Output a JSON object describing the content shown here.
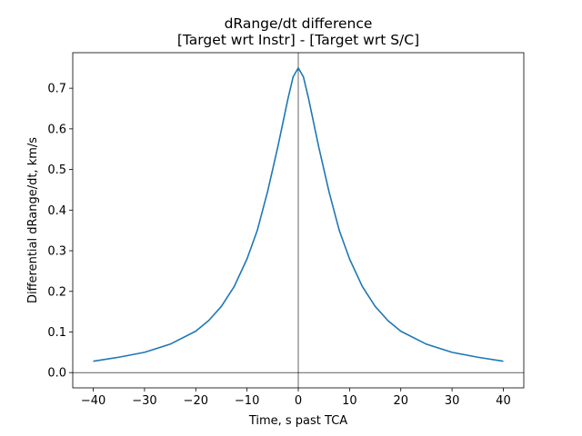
{
  "chart_data": {
    "type": "line",
    "title": "dRange/dt difference",
    "subtitle": "[Target wrt Instr] - [Target wrt S/C]",
    "xlabel": "Time, s past TCA",
    "ylabel": "Differential dRange/dt, km/s",
    "xlim": [
      -44,
      44
    ],
    "ylim": [
      -0.0375,
      0.7875
    ],
    "xticks": [
      -40,
      -30,
      -20,
      -10,
      0,
      10,
      20,
      30,
      40
    ],
    "xtick_labels": [
      "−40",
      "−30",
      "−20",
      "−10",
      "0",
      "10",
      "20",
      "30",
      "40"
    ],
    "yticks": [
      0.0,
      0.1,
      0.2,
      0.3,
      0.4,
      0.5,
      0.6,
      0.7
    ],
    "ytick_labels": [
      "0.0",
      "0.1",
      "0.2",
      "0.3",
      "0.4",
      "0.5",
      "0.6",
      "0.7"
    ],
    "grid": false,
    "reference_lines": {
      "vertical_x": 0,
      "horizontal_y": 0
    },
    "series": [
      {
        "color": "#1f77b4",
        "x": [
          -40,
          -35,
          -30,
          -25,
          -20,
          -17.5,
          -15,
          -12.5,
          -10,
          -8,
          -6,
          -5,
          -4,
          -3,
          -2,
          -1,
          0,
          1,
          2,
          3,
          4,
          5,
          6,
          8,
          10,
          12.5,
          15,
          17.5,
          20,
          25,
          30,
          35,
          40
        ],
        "values": [
          0.028,
          0.038,
          0.05,
          0.07,
          0.102,
          0.128,
          0.163,
          0.212,
          0.28,
          0.35,
          0.445,
          0.5,
          0.555,
          0.615,
          0.675,
          0.728,
          0.75,
          0.728,
          0.675,
          0.615,
          0.555,
          0.5,
          0.445,
          0.35,
          0.28,
          0.212,
          0.163,
          0.128,
          0.102,
          0.07,
          0.05,
          0.038,
          0.028
        ]
      }
    ]
  }
}
